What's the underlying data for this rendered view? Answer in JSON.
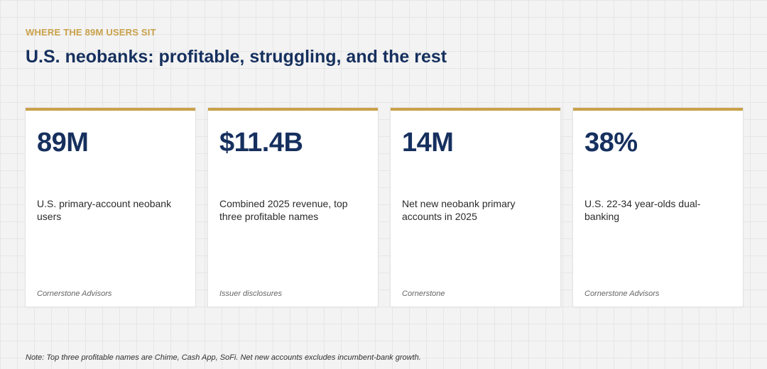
{
  "header": {
    "eyebrow": "WHERE THE 89M USERS SIT",
    "title": "U.S. neobanks: profitable, struggling, and the rest"
  },
  "cards": [
    {
      "value": "89M",
      "description": "U.S. primary-account neobank users",
      "source": "Cornerstone Advisors"
    },
    {
      "value": "$11.4B",
      "description": "Combined 2025 revenue, top three profitable names",
      "source": "Issuer disclosures"
    },
    {
      "value": "14M",
      "description": "Net new neobank primary accounts in 2025",
      "source": "Cornerstone"
    },
    {
      "value": "38%",
      "description": "U.S. 22-34 year-olds dual-banking",
      "source": "Cornerstone Advisors"
    }
  ],
  "footer": {
    "note": "Note: Top three profitable names are Chime, Cash App, SoFi. Net new accounts excludes incumbent-bank growth."
  },
  "colors": {
    "accent": "#c9a14a",
    "heading": "#16305e"
  }
}
